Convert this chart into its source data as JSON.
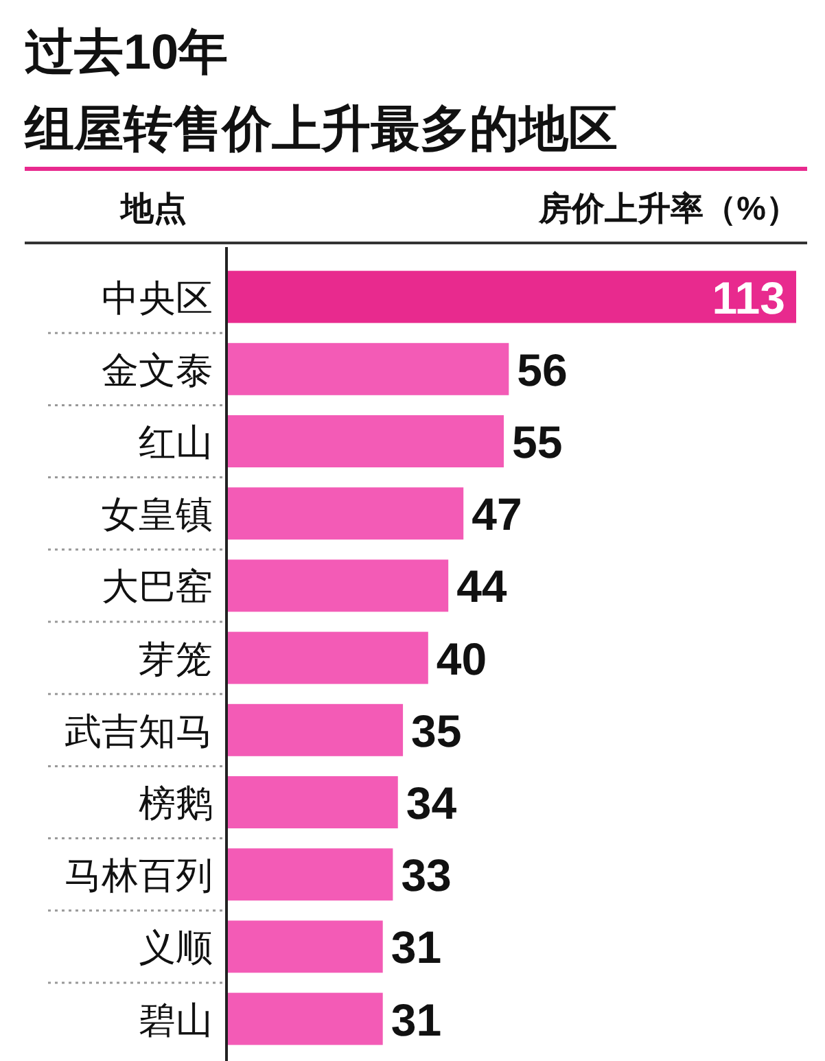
{
  "chart_data": {
    "type": "bar",
    "orientation": "horizontal",
    "title": "过去10年",
    "subtitle": "组屋转售价上升最多的地区",
    "ylabel": "地点",
    "xlabel": "房价上升率（%）",
    "categories": [
      "中央区",
      "金文泰",
      "红山",
      "女皇镇",
      "大巴窑",
      "芽笼",
      "武吉知马",
      "榜鹅",
      "马林百列",
      "义顺",
      "碧山"
    ],
    "values": [
      113,
      56,
      55,
      47,
      44,
      40,
      35,
      34,
      33,
      31,
      31
    ],
    "colors": [
      "#e82a8e",
      "#f35bb6",
      "#f35bb6",
      "#f35bb6",
      "#f35bb6",
      "#f35bb6",
      "#f35bb6",
      "#f35bb6",
      "#f35bb6",
      "#f35bb6",
      "#f35bb6"
    ],
    "data_labels": true
  }
}
